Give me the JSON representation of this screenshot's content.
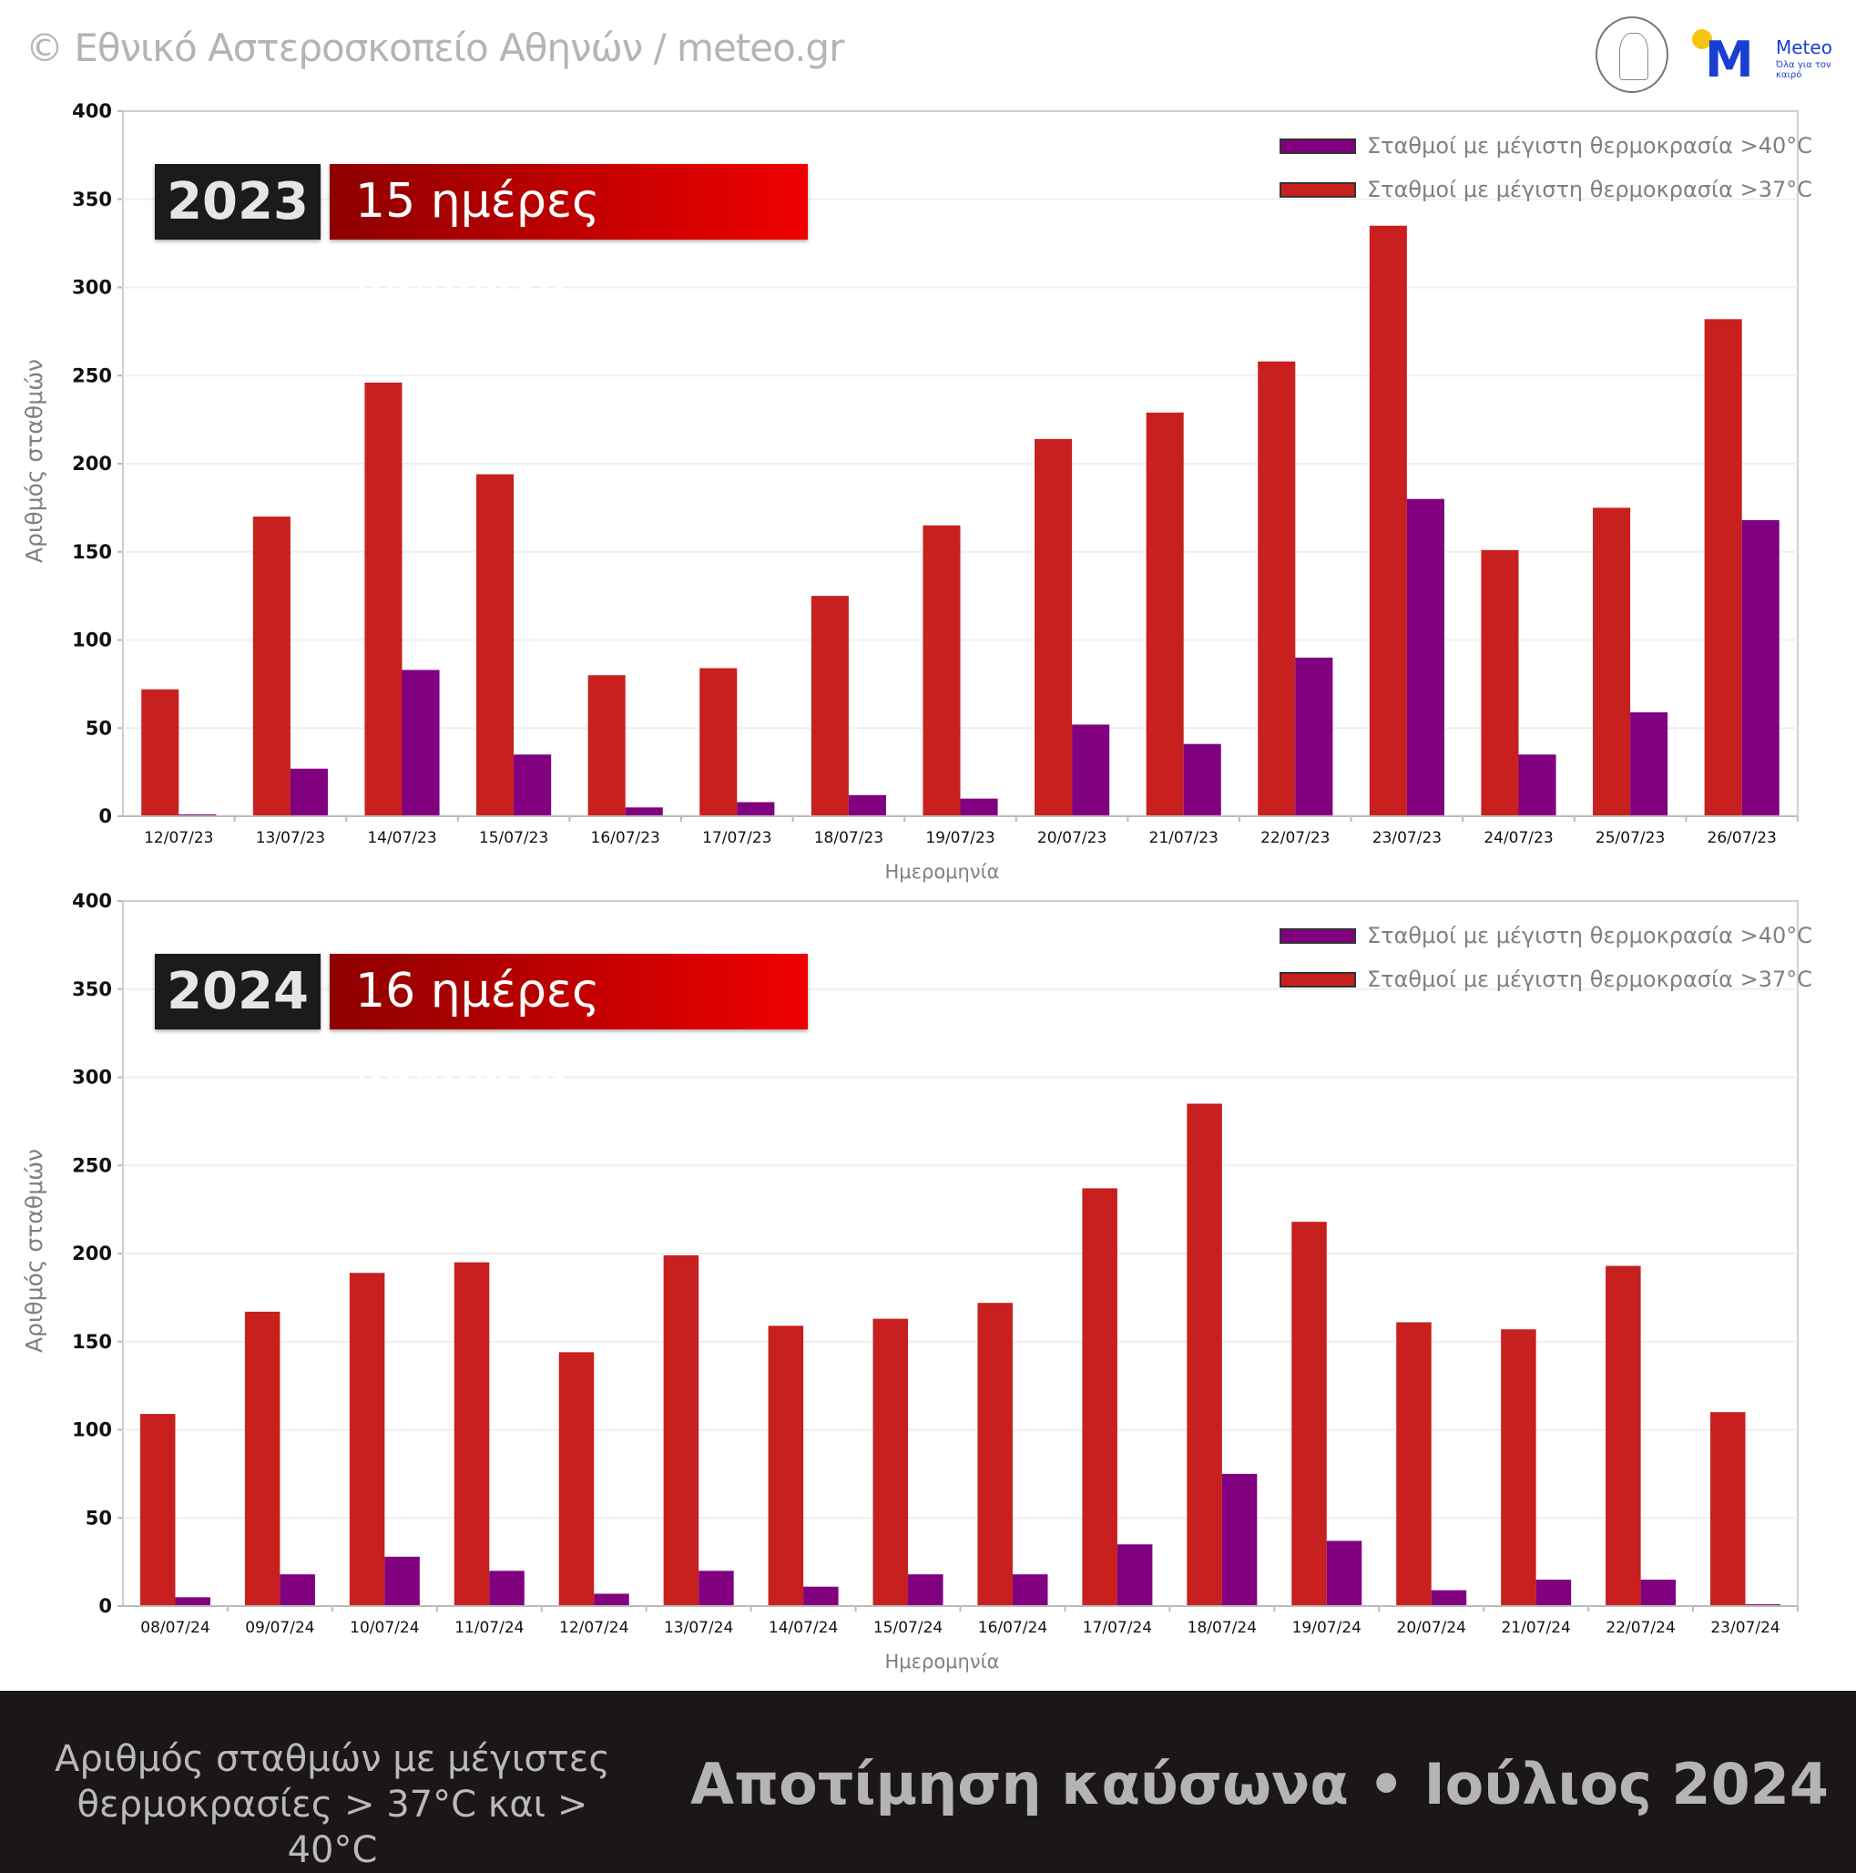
{
  "header": {
    "copyright": "© Εθνικό Αστεροσκοπείο Αθηνών / meteo.gr",
    "logo_noa": "National Observatory of Athens",
    "logo_meteo_name": "Meteo",
    "logo_meteo_tagline": "Όλα για τον καιρό"
  },
  "colors": {
    "above40": "#800080",
    "above37": "#c8201e",
    "footer_bg": "#1a1716"
  },
  "footer": {
    "subtitle": "Αριθμός σταθμών με μέγιστες θερμοκρασίες > 37°C και > 40°C",
    "title": "Αποτίμηση καύσωνα • Ιούλιος 2024"
  },
  "chart_data": [
    {
      "type": "bar",
      "year_badge": "2023",
      "days_badge": "15 ημέρες καύσωνα",
      "xlabel": "Ημερομηνία",
      "ylabel": "Αριθμός σταθμών",
      "ylim": [
        0,
        400
      ],
      "yticks": [
        0,
        50,
        100,
        150,
        200,
        250,
        300,
        350,
        400
      ],
      "grid": true,
      "legend_placement": "top-right",
      "categories": [
        "12/07/23",
        "13/07/23",
        "14/07/23",
        "15/07/23",
        "16/07/23",
        "17/07/23",
        "18/07/23",
        "19/07/23",
        "20/07/23",
        "21/07/23",
        "22/07/23",
        "23/07/23",
        "24/07/23",
        "25/07/23",
        "26/07/23"
      ],
      "series": [
        {
          "name": "Σταθμοί με μέγιστη θερμοκρασία >37°C",
          "color": "#c8201e",
          "values": [
            72,
            170,
            246,
            194,
            80,
            84,
            125,
            165,
            214,
            229,
            258,
            335,
            151,
            175,
            282
          ]
        },
        {
          "name": "Σταθμοί με μέγιστη θερμοκρασία >40°C",
          "color": "#800080",
          "values": [
            1,
            27,
            83,
            35,
            5,
            8,
            12,
            10,
            52,
            41,
            90,
            180,
            35,
            59,
            168
          ]
        }
      ]
    },
    {
      "type": "bar",
      "year_badge": "2024",
      "days_badge": "16 ημέρες καύσωνα",
      "xlabel": "Ημερομηνία",
      "ylabel": "Αριθμός σταθμών",
      "ylim": [
        0,
        400
      ],
      "yticks": [
        0,
        50,
        100,
        150,
        200,
        250,
        300,
        350,
        400
      ],
      "grid": true,
      "legend_placement": "top-right",
      "categories": [
        "08/07/24",
        "09/07/24",
        "10/07/24",
        "11/07/24",
        "12/07/24",
        "13/07/24",
        "14/07/24",
        "15/07/24",
        "16/07/24",
        "17/07/24",
        "18/07/24",
        "19/07/24",
        "20/07/24",
        "21/07/24",
        "22/07/24",
        "23/07/24"
      ],
      "series": [
        {
          "name": "Σταθμοί με μέγιστη θερμοκρασία >37°C",
          "color": "#c8201e",
          "values": [
            109,
            167,
            189,
            195,
            144,
            199,
            159,
            163,
            172,
            237,
            285,
            218,
            161,
            157,
            193,
            110
          ]
        },
        {
          "name": "Σταθμοί με μέγιστη θερμοκρασία >40°C",
          "color": "#800080",
          "values": [
            5,
            18,
            28,
            20,
            7,
            20,
            11,
            18,
            18,
            35,
            75,
            37,
            9,
            15,
            15,
            1
          ]
        }
      ]
    }
  ]
}
